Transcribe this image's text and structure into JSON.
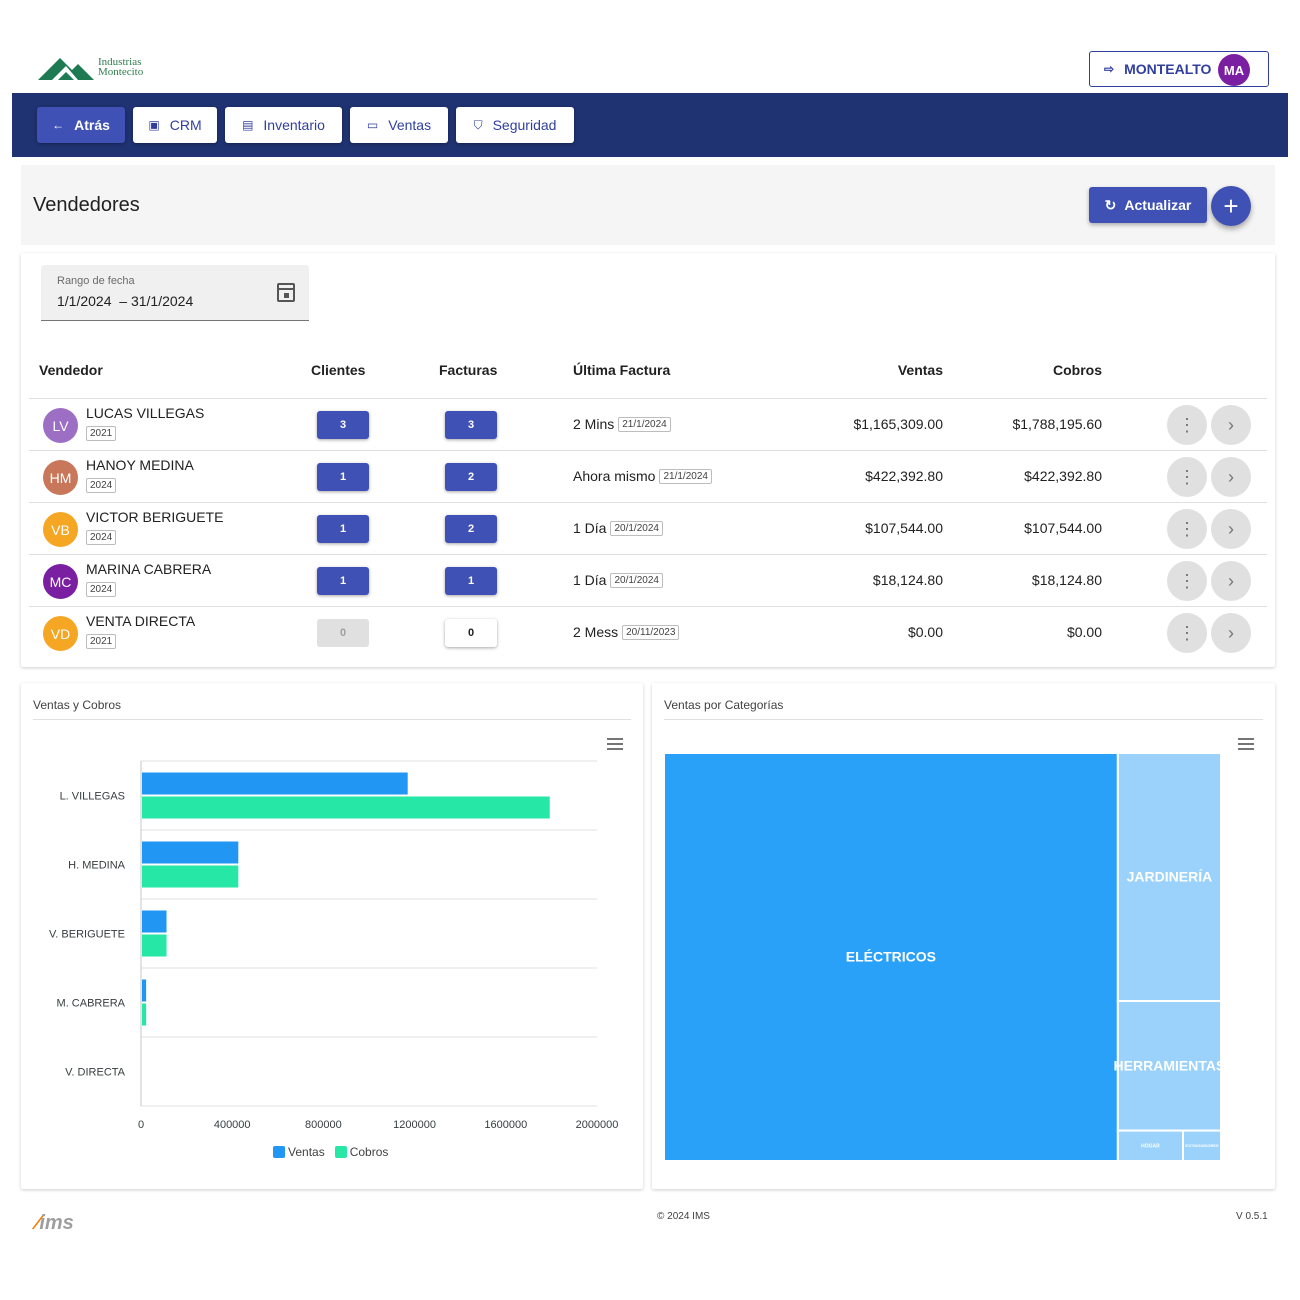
{
  "brand": {
    "line1": "Industrias",
    "line2": "Montecito"
  },
  "user": {
    "name": "MONTEALTO",
    "initials": "MA",
    "logout_icon": "logout-icon"
  },
  "nav": {
    "back": "Atrás",
    "items": [
      "CRM",
      "Inventario",
      "Ventas",
      "Seguridad"
    ]
  },
  "page": {
    "title": "Vendedores",
    "refresh_label": "Actualizar",
    "add_label": "+"
  },
  "filter": {
    "label": "Rango de fecha",
    "value": "1/1/2024  – 31/1/2024"
  },
  "table": {
    "headers": {
      "vendedor": "Vendedor",
      "clientes": "Clientes",
      "facturas": "Facturas",
      "ultima": "Última Factura",
      "ventas": "Ventas",
      "cobros": "Cobros"
    },
    "rows": [
      {
        "initials": "LV",
        "color": "#9c6fc4",
        "name": "LUCAS VILLEGAS",
        "year": "2021",
        "clientes": "3",
        "facturas": "3",
        "last": "2 Mins",
        "last_date": "21/1/2024",
        "ventas": "$1,165,309.00",
        "cobros": "$1,788,195.60"
      },
      {
        "initials": "HM",
        "color": "#c9775a",
        "name": "HANOY MEDINA",
        "year": "2024",
        "clientes": "1",
        "facturas": "2",
        "last": "Ahora mismo",
        "last_date": "21/1/2024",
        "ventas": "$422,392.80",
        "cobros": "$422,392.80"
      },
      {
        "initials": "VB",
        "color": "#f5a623",
        "name": "VICTOR BERIGUETE",
        "year": "2024",
        "clientes": "1",
        "facturas": "2",
        "last": "1 Día",
        "last_date": "20/1/2024",
        "ventas": "$107,544.00",
        "cobros": "$107,544.00"
      },
      {
        "initials": "MC",
        "color": "#7b1fa2",
        "name": "MARINA CABRERA",
        "year": "2024",
        "clientes": "1",
        "facturas": "1",
        "last": "1 Día",
        "last_date": "20/1/2024",
        "ventas": "$18,124.80",
        "cobros": "$18,124.80"
      },
      {
        "initials": "VD",
        "color": "#f5a623",
        "name": "VENTA DIRECTA",
        "year": "2021",
        "clientes": "0",
        "facturas": "0",
        "last": "2 Mess",
        "last_date": "20/11/2023",
        "ventas": "$0.00",
        "cobros": "$0.00"
      }
    ]
  },
  "charts": {
    "bar_title": "Ventas y Cobros",
    "treemap_title": "Ventas por Categorías"
  },
  "chart_data": [
    {
      "type": "bar",
      "orientation": "horizontal",
      "categories": [
        "L. VILLEGAS",
        "H. MEDINA",
        "V. BERIGUETE",
        "M. CABRERA",
        "V. DIRECTA"
      ],
      "series": [
        {
          "name": "Ventas",
          "color": "#2196f3",
          "values": [
            1165309,
            422392.8,
            107544,
            18124.8,
            0
          ]
        },
        {
          "name": "Cobros",
          "color": "#26e7a6",
          "values": [
            1788195.6,
            422392.8,
            107544,
            18124.8,
            0
          ]
        }
      ],
      "xlim": [
        0,
        2000000
      ],
      "xticks": [
        "0",
        "400000",
        "800000",
        "1200000",
        "1600000",
        "2000000"
      ],
      "legend": "bottom"
    },
    {
      "type": "treemap",
      "items": [
        {
          "label": "ELÉCTRICOS",
          "value": 1122,
          "color": "#2aa1f8"
        },
        {
          "label": "JARDINERÍA",
          "value": 155,
          "color": "#9bd2fb"
        },
        {
          "label": "HERRAMIENTAS",
          "value": 81,
          "color": "#9bd2fb"
        },
        {
          "label": "HOGAR",
          "value": 12,
          "color": "#9bd2fb"
        },
        {
          "label": "EXTINGUIDORES",
          "value": 7,
          "color": "#9bd2fb"
        }
      ]
    }
  ],
  "footer": {
    "brand": "ims",
    "copyright": "© 2024 IMS",
    "version": "V 0.5.1"
  }
}
